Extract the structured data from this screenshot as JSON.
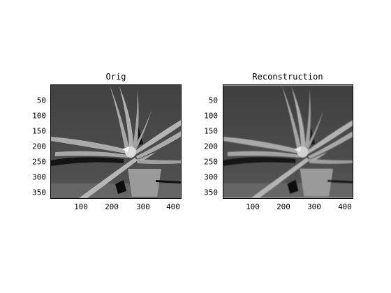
{
  "figure": {
    "left_title": "Orig",
    "right_title": "Reconstruction",
    "y_ticks": [
      "50",
      "100",
      "150",
      "200",
      "250",
      "300",
      "350"
    ],
    "x_ticks": [
      "100",
      "200",
      "300",
      "400"
    ]
  },
  "colors": {
    "background": "#ffffff",
    "plant_light": "#a9a9a9",
    "plant_mid": "#999999",
    "dark_bg": "#4c4c4c",
    "shadow": "#1a1a1a"
  },
  "icons": {
    "image": "plant-depth-image"
  }
}
